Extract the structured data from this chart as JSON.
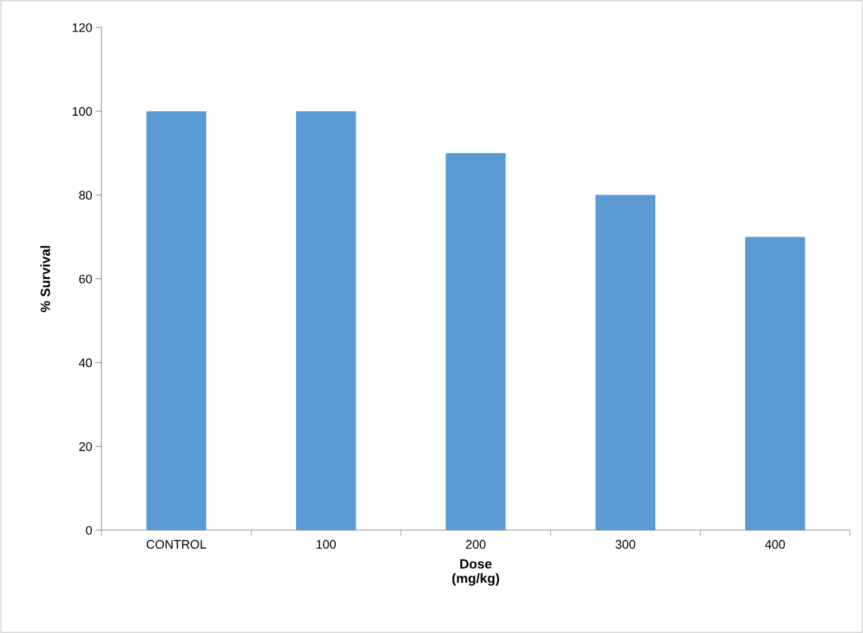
{
  "chart_data": {
    "type": "bar",
    "xlabel": "Dose\n(mg/kg)",
    "ylabel": "% Survival",
    "categories": [
      "CONTROL",
      "100",
      "200",
      "300",
      "400"
    ],
    "values": [
      100,
      100,
      90,
      80,
      70
    ],
    "color": "#5b9bd5",
    "ylim": [
      0,
      120
    ],
    "yticks": [
      0,
      20,
      40,
      60,
      80,
      100,
      120
    ],
    "grid": false,
    "legend": false
  }
}
